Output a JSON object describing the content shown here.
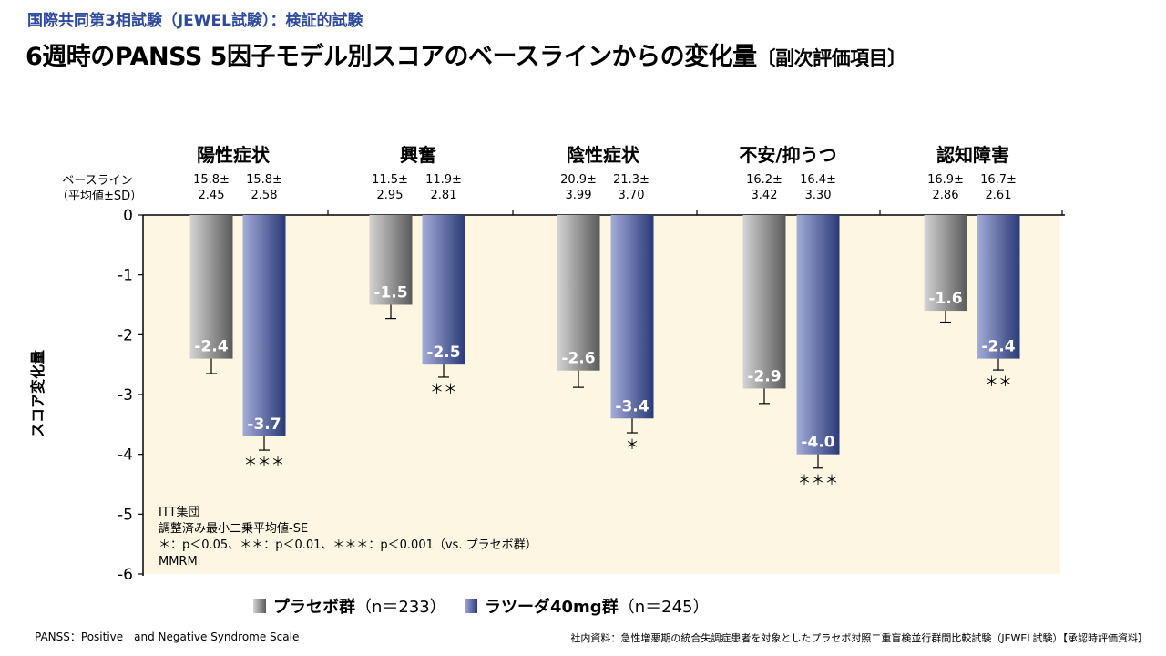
{
  "header": {
    "subtitle": "国際共同第3相試験（JEWEL試験）：検証的試験",
    "title": "6週時のPANSS 5因子モデル別スコアのベースラインからの変化量",
    "title_note": "〔副次評価項目〕"
  },
  "baseline_label": [
    "ベースライン",
    "（平均値±SD）"
  ],
  "chart_data": {
    "type": "bar",
    "ylabel": "スコア変化量",
    "ylim": [
      -6,
      0
    ],
    "yticks": [
      "0",
      "-1",
      "-2",
      "-3",
      "-4",
      "-5",
      "-6"
    ],
    "categories": [
      "陽性症状",
      "興奮",
      "陰性症状",
      "不安/抑うつ",
      "認知障害"
    ],
    "series": [
      {
        "name": "プラセボ群",
        "n": "（n＝233）",
        "values": [
          -2.4,
          -1.5,
          -2.6,
          -2.9,
          -1.6
        ],
        "labels": [
          "-2.4",
          "-1.5",
          "-2.6",
          "-2.9",
          "-1.6"
        ],
        "se": [
          0.25,
          0.23,
          0.28,
          0.25,
          0.19
        ],
        "baseline": [
          "15.8±\n2.45",
          "11.5±\n2.95",
          "20.9±\n3.99",
          "16.2±\n3.42",
          "16.9±\n2.86"
        ],
        "significance": [
          "",
          "",
          "",
          "",
          ""
        ]
      },
      {
        "name": "ラツーダ40mg群",
        "n": "（n＝245）",
        "values": [
          -3.7,
          -2.5,
          -3.4,
          -4.0,
          -2.4
        ],
        "labels": [
          "-3.7",
          "-2.5",
          "-3.4",
          "-4.0",
          "-2.4"
        ],
        "se": [
          0.23,
          0.21,
          0.24,
          0.23,
          0.19
        ],
        "baseline": [
          "15.8±\n2.58",
          "11.9±\n2.81",
          "21.3±\n3.70",
          "16.4±\n3.30",
          "16.7±\n2.61"
        ],
        "significance": [
          "＊＊＊",
          "＊＊",
          "＊",
          "＊＊＊",
          "＊＊"
        ]
      }
    ]
  },
  "notes": [
    "ITT集団",
    "調整済み最小二乗平均値-SE",
    "＊：p＜0.05、＊＊：p＜0.01、＊＊＊：p＜0.001（vs. プラセボ群）",
    "MMRM"
  ],
  "colors": {
    "panel_bg": "#fdf6e3",
    "placebo_light": "#d4d4d4",
    "placebo_dark": "#5a5a5a",
    "drug_light": "#a4acd8",
    "drug_dark": "#2a3a78",
    "accent": "#2e4a9c"
  },
  "footer": {
    "left": "PANSS：Positive　and Negative Syndrome Scale",
    "right": "社内資料：急性増悪期の統合失調症患者を対象としたプラセボ対照二重盲検並行群間比較試験（JEWEL試験）【承認時評価資料】"
  }
}
